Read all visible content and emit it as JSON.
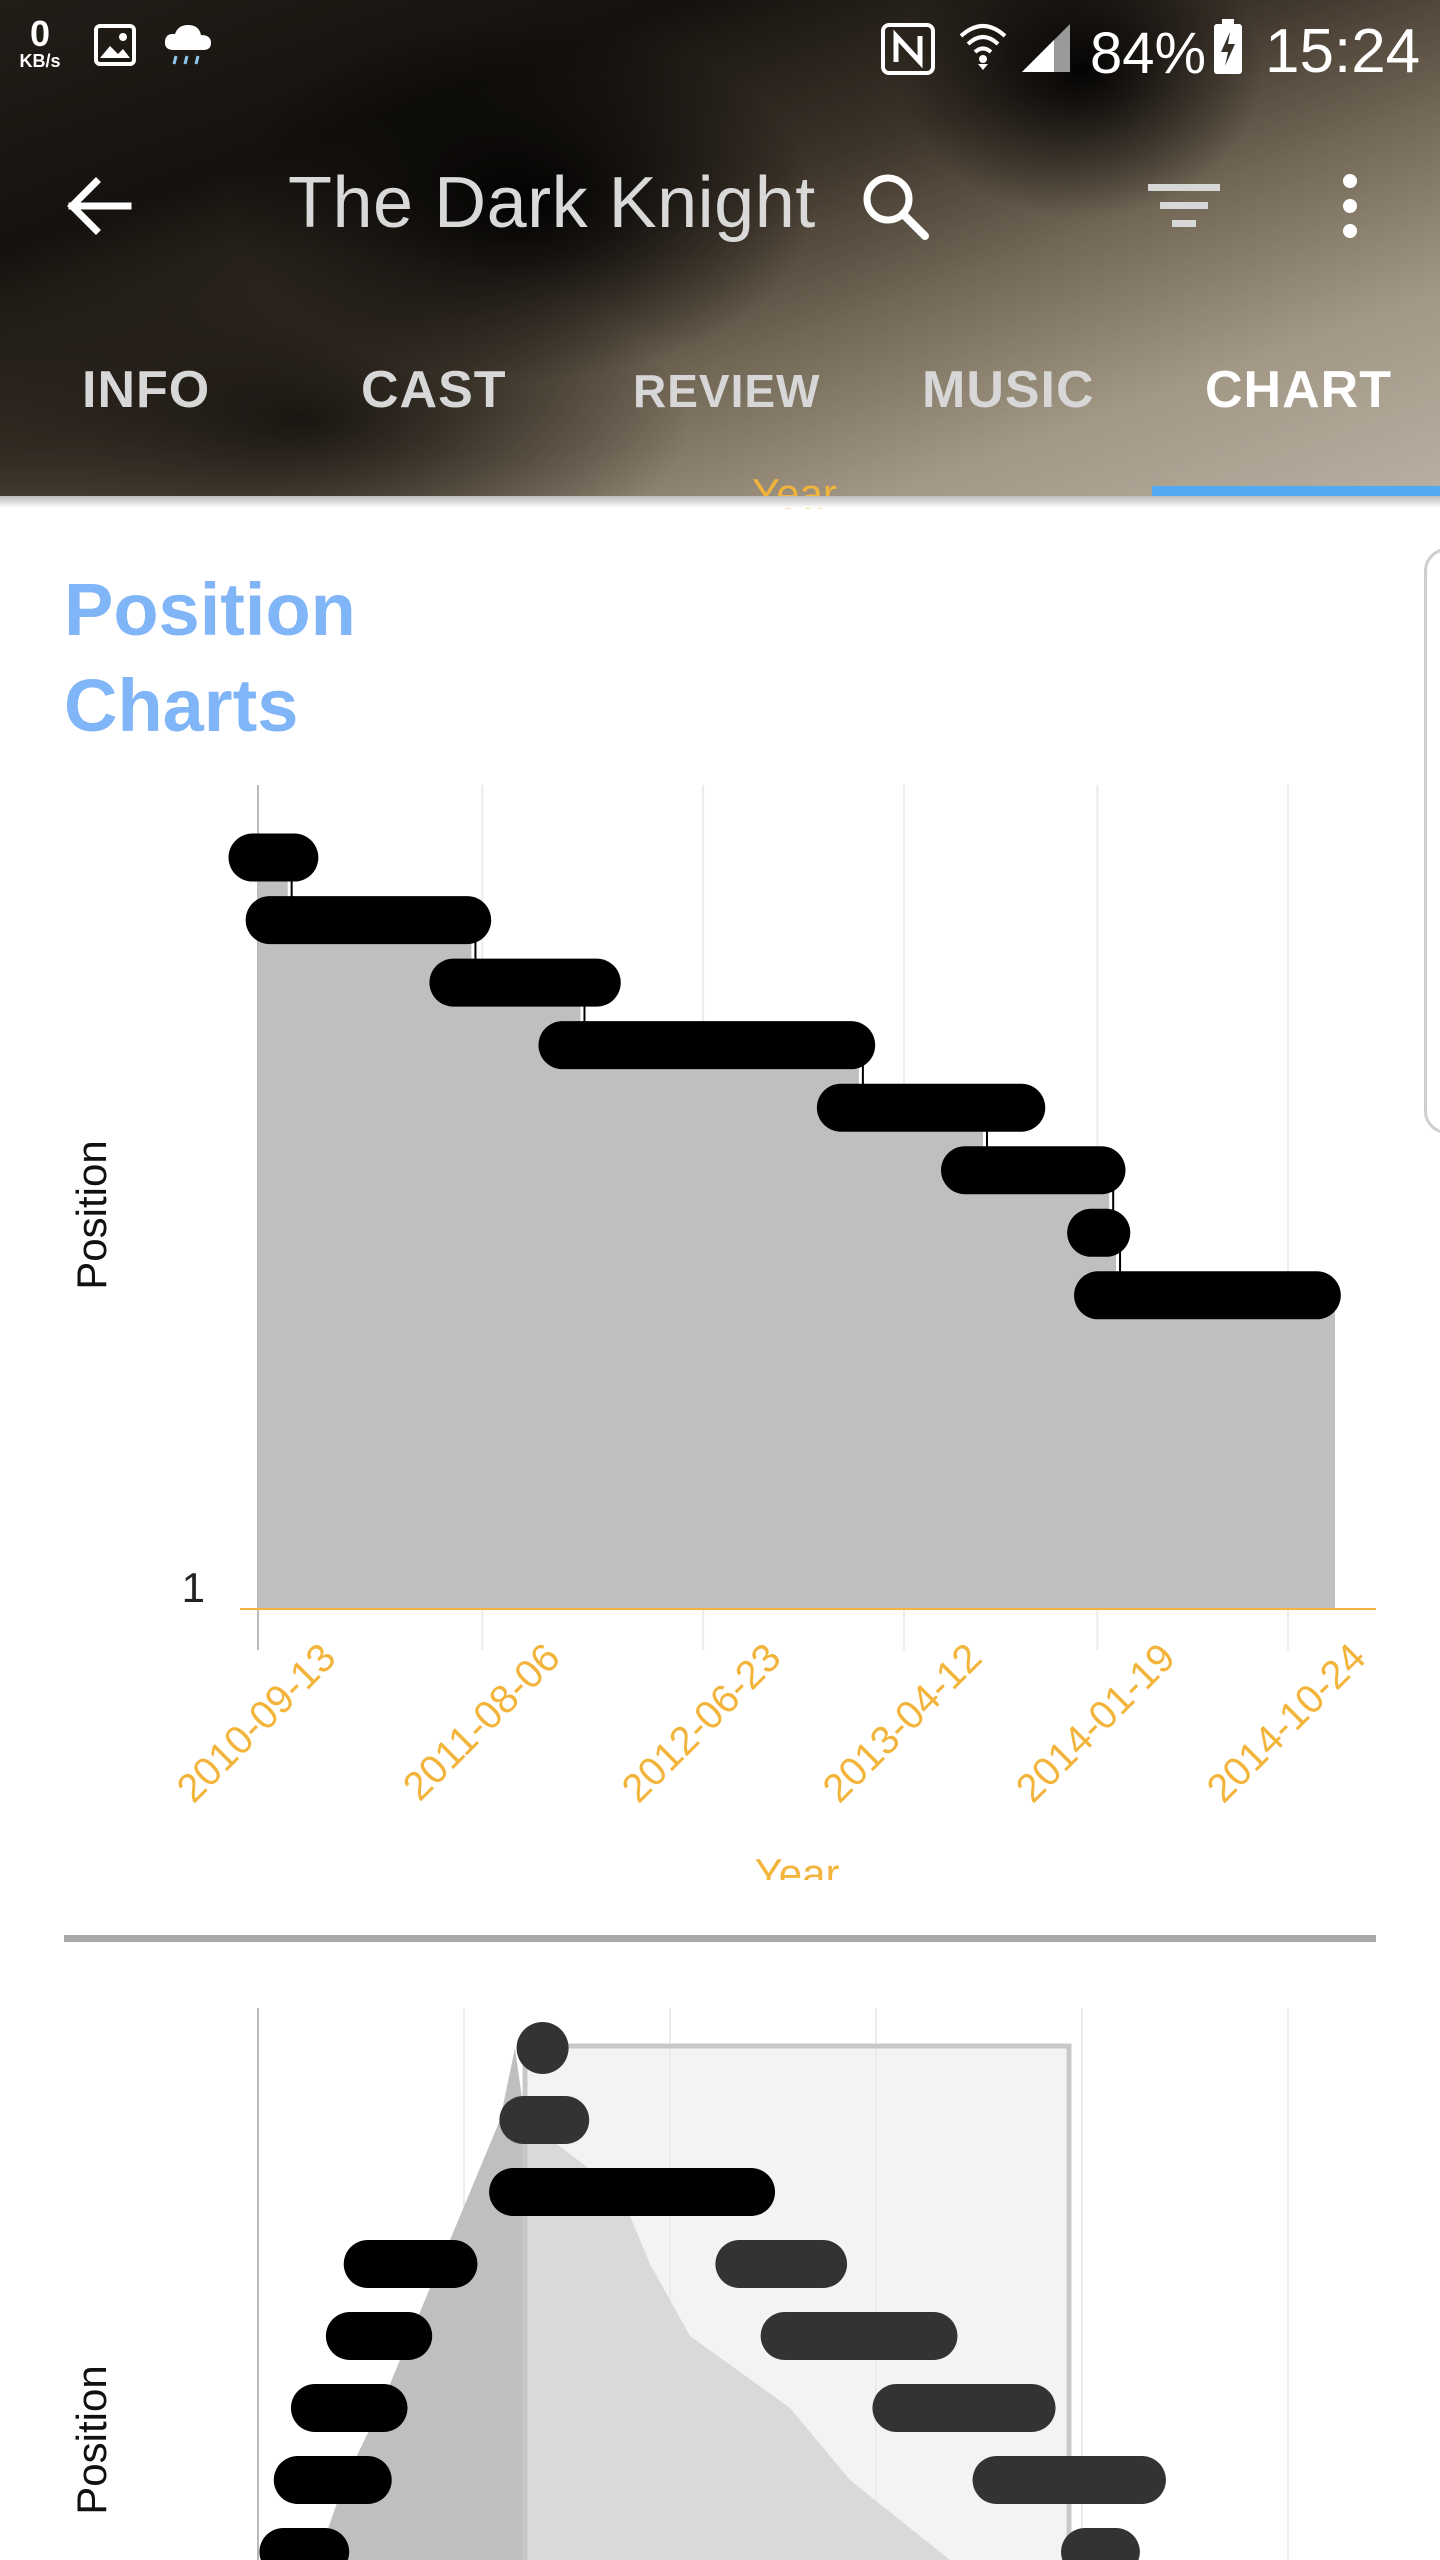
{
  "status_bar": {
    "speed_value": "0",
    "speed_unit": "KB/s",
    "battery": "84%",
    "time": "15:24",
    "icons": [
      "image-icon",
      "cloud-rain-icon",
      "nfc-icon",
      "wifi-icon",
      "signal-icon",
      "battery-icon"
    ]
  },
  "toolbar": {
    "title": "The Dark Knight",
    "icons": [
      "back-arrow-icon",
      "search-icon",
      "filter-icon",
      "more-vert-icon"
    ]
  },
  "tabs": [
    {
      "label": "INFO",
      "active": false
    },
    {
      "label": "CAST",
      "active": false
    },
    {
      "label": "REVIEW",
      "active": false
    },
    {
      "label": "MUSIC",
      "active": false
    },
    {
      "label": "CHART",
      "active": true
    }
  ],
  "content": {
    "section_title_line1": "Position",
    "section_title_line2": "Charts",
    "previous_chart_xlabel": "Year"
  },
  "colors": {
    "accent_blue": "#80b5f7",
    "tab_indicator": "#55a9f0",
    "axis_orange": "#f3b43b",
    "area_fill": "#bfbfbf"
  },
  "chart_data": [
    {
      "type": "area",
      "step": true,
      "title": "",
      "xlabel": "Year",
      "ylabel": "Position",
      "x_ticks": [
        "2010-09-13",
        "2011-08-06",
        "2012-06-23",
        "2013-04-12",
        "2014-01-19",
        "2014-10-24"
      ],
      "y_ticks": [
        "1"
      ],
      "grid": true,
      "series": [
        {
          "values": [
            {
              "start": "2010-09-05",
              "end": "2010-11-05",
              "level": 12
            },
            {
              "start": "2010-09-30",
              "end": "2011-07-15",
              "level": 11
            },
            {
              "start": "2011-06-25",
              "end": "2012-01-20",
              "level": 10
            },
            {
              "start": "2011-12-01",
              "end": "2013-01-25",
              "level": 9
            },
            {
              "start": "2013-01-10",
              "end": "2013-09-30",
              "level": 8
            },
            {
              "start": "2013-07-10",
              "end": "2014-01-25",
              "level": 7
            },
            {
              "start": "2014-01-10",
              "end": "2014-02-01",
              "level": 6
            },
            {
              "start": "2014-01-20",
              "end": "2014-12-05",
              "level": 5
            }
          ]
        }
      ]
    },
    {
      "type": "area",
      "step": true,
      "title": "",
      "xlabel": "",
      "ylabel": "Position",
      "partial": true,
      "series": [
        {
          "values": [
            {
              "start": "2011-10-15",
              "end": "2011-11-20",
              "level": 20
            },
            {
              "start": "2011-10-05",
              "end": "2011-12-05",
              "level": 19
            },
            {
              "start": "2011-09-20",
              "end": "2012-09-01",
              "level": 18
            },
            {
              "start": "2011-02-20",
              "end": "2011-06-25",
              "level": 17
            },
            {
              "start": "2012-08-15",
              "end": "2012-12-15",
              "level": 17
            },
            {
              "start": "2011-01-25",
              "end": "2011-04-20",
              "level": 16
            },
            {
              "start": "2012-10-20",
              "end": "2013-05-25",
              "level": 16
            },
            {
              "start": "2010-12-05",
              "end": "2011-03-15",
              "level": 15
            },
            {
              "start": "2013-04-01",
              "end": "2013-10-15",
              "level": 15
            },
            {
              "start": "2010-11-10",
              "end": "2011-02-20",
              "level": 14
            },
            {
              "start": "2013-08-25",
              "end": "2014-03-25",
              "level": 14
            },
            {
              "start": "2010-10-20",
              "end": "2010-12-20",
              "level": 13
            },
            {
              "start": "2014-01-01",
              "end": "2014-02-15",
              "level": 13
            }
          ]
        }
      ]
    }
  ]
}
